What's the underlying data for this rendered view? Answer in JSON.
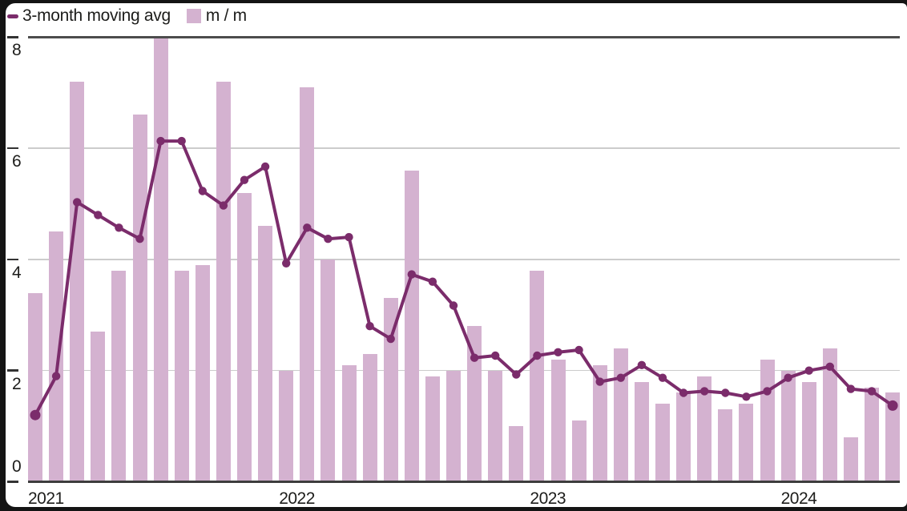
{
  "legend": {
    "line_label": "3-month moving avg",
    "bar_label": "m / m"
  },
  "colors": {
    "line": "#7b2c6b",
    "bar": "#d4b2d0",
    "grid_light": "#cccccc",
    "grid_dark_top": "#4d4d4d",
    "grid_dark_baseline": "#3d3d3d",
    "axis_text": "#1d1d1b",
    "frame": "#141414",
    "background": "#ffffff"
  },
  "y_axis": {
    "tick_labels": [
      "0",
      "2",
      "4",
      "6",
      "8"
    ],
    "tick_values": [
      0,
      2,
      4,
      6,
      8
    ]
  },
  "x_axis": {
    "labels": [
      "2021",
      "2022",
      "2023",
      "2024"
    ]
  },
  "chart_data": {
    "type": "bar",
    "title": "",
    "xlabel": "",
    "ylabel": "",
    "ylim": [
      0,
      8.3
    ],
    "grid": true,
    "legend_position": "top-left",
    "months": [
      "Jan 2021",
      "Feb 2021",
      "Mar 2021",
      "Apr 2021",
      "May 2021",
      "Jun 2021",
      "Jul 2021",
      "Aug 2021",
      "Sep 2021",
      "Oct 2021",
      "Nov 2021",
      "Dec 2021",
      "Jan 2022",
      "Feb 2022",
      "Mar 2022",
      "Apr 2022",
      "May 2022",
      "Jun 2022",
      "Jul 2022",
      "Aug 2022",
      "Sep 2022",
      "Oct 2022",
      "Nov 2022",
      "Dec 2022",
      "Jan 2023",
      "Feb 2023",
      "Mar 2023",
      "Apr 2023",
      "May 2023",
      "Jun 2023",
      "Jul 2023",
      "Aug 2023",
      "Sep 2023",
      "Oct 2023",
      "Nov 2023",
      "Dec 2023",
      "Jan 2024",
      "Feb 2024",
      "Mar 2024",
      "Apr 2024",
      "May 2024",
      "Jun 2024"
    ],
    "series": [
      {
        "name": "m / m",
        "type": "bar",
        "values": [
          3.4,
          4.5,
          7.2,
          2.7,
          3.8,
          6.6,
          8.0,
          3.8,
          3.9,
          7.2,
          5.2,
          4.6,
          2.0,
          7.1,
          4.0,
          2.1,
          2.3,
          3.3,
          5.6,
          1.9,
          2.0,
          2.8,
          2.0,
          1.0,
          3.8,
          2.2,
          1.1,
          2.1,
          2.4,
          1.8,
          1.4,
          1.6,
          1.9,
          1.3,
          1.4,
          2.2,
          2.0,
          1.8,
          2.4,
          0.8,
          1.7,
          1.6
        ]
      },
      {
        "name": "3-month moving avg",
        "type": "line",
        "values": [
          1.2,
          1.9,
          5.03,
          4.8,
          4.57,
          4.37,
          6.13,
          6.13,
          5.23,
          4.97,
          5.43,
          5.67,
          3.93,
          4.57,
          4.37,
          4.4,
          2.8,
          2.57,
          3.73,
          3.6,
          3.17,
          2.23,
          2.27,
          1.93,
          2.27,
          2.33,
          2.37,
          1.8,
          1.87,
          2.1,
          1.87,
          1.6,
          1.63,
          1.6,
          1.53,
          1.63,
          1.87,
          2.0,
          2.07,
          1.67,
          1.63,
          1.37
        ]
      }
    ]
  }
}
